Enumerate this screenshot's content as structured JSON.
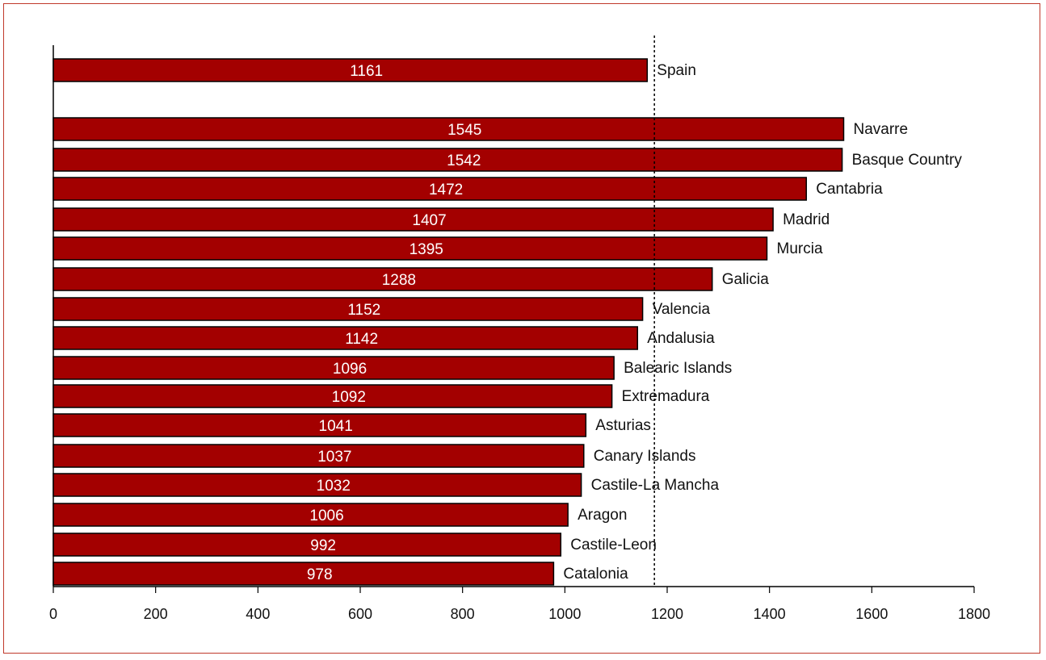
{
  "chart_data": {
    "type": "bar",
    "orientation": "horizontal",
    "title": "",
    "xlabel": "",
    "ylabel": "",
    "xlim": [
      0,
      1800
    ],
    "xticks": [
      0,
      200,
      400,
      600,
      800,
      1000,
      1200,
      1400,
      1600,
      1800
    ],
    "reference_line": {
      "value": 1175,
      "style": "dashed"
    },
    "bar_color": "#a30000",
    "categories": [
      "Spain",
      "Navarre",
      "Basque Country",
      "Cantabria",
      "Madrid",
      "Murcia",
      "Galicia",
      "Valencia",
      "Andalusia",
      "Balearic Islands",
      "Extremadura",
      "Asturias",
      "Canary Islands",
      "Castile-La Mancha",
      "Aragon",
      "Castile-Leon",
      "Catalonia"
    ],
    "values": [
      1161,
      1545,
      1542,
      1472,
      1407,
      1395,
      1288,
      1152,
      1142,
      1096,
      1092,
      1041,
      1037,
      1032,
      1006,
      992,
      978
    ],
    "value_labels": [
      "1161",
      "1545",
      "1542",
      "1472",
      "1407",
      "1395",
      "1288",
      "1152",
      "1142",
      "1096",
      "1092",
      "1041",
      "1037",
      "1032",
      "1006",
      "992",
      "978"
    ],
    "tick_labels": [
      "0",
      "200",
      "400",
      "600",
      "800",
      "1000",
      "1200",
      "1400",
      "1600",
      "1800"
    ]
  }
}
